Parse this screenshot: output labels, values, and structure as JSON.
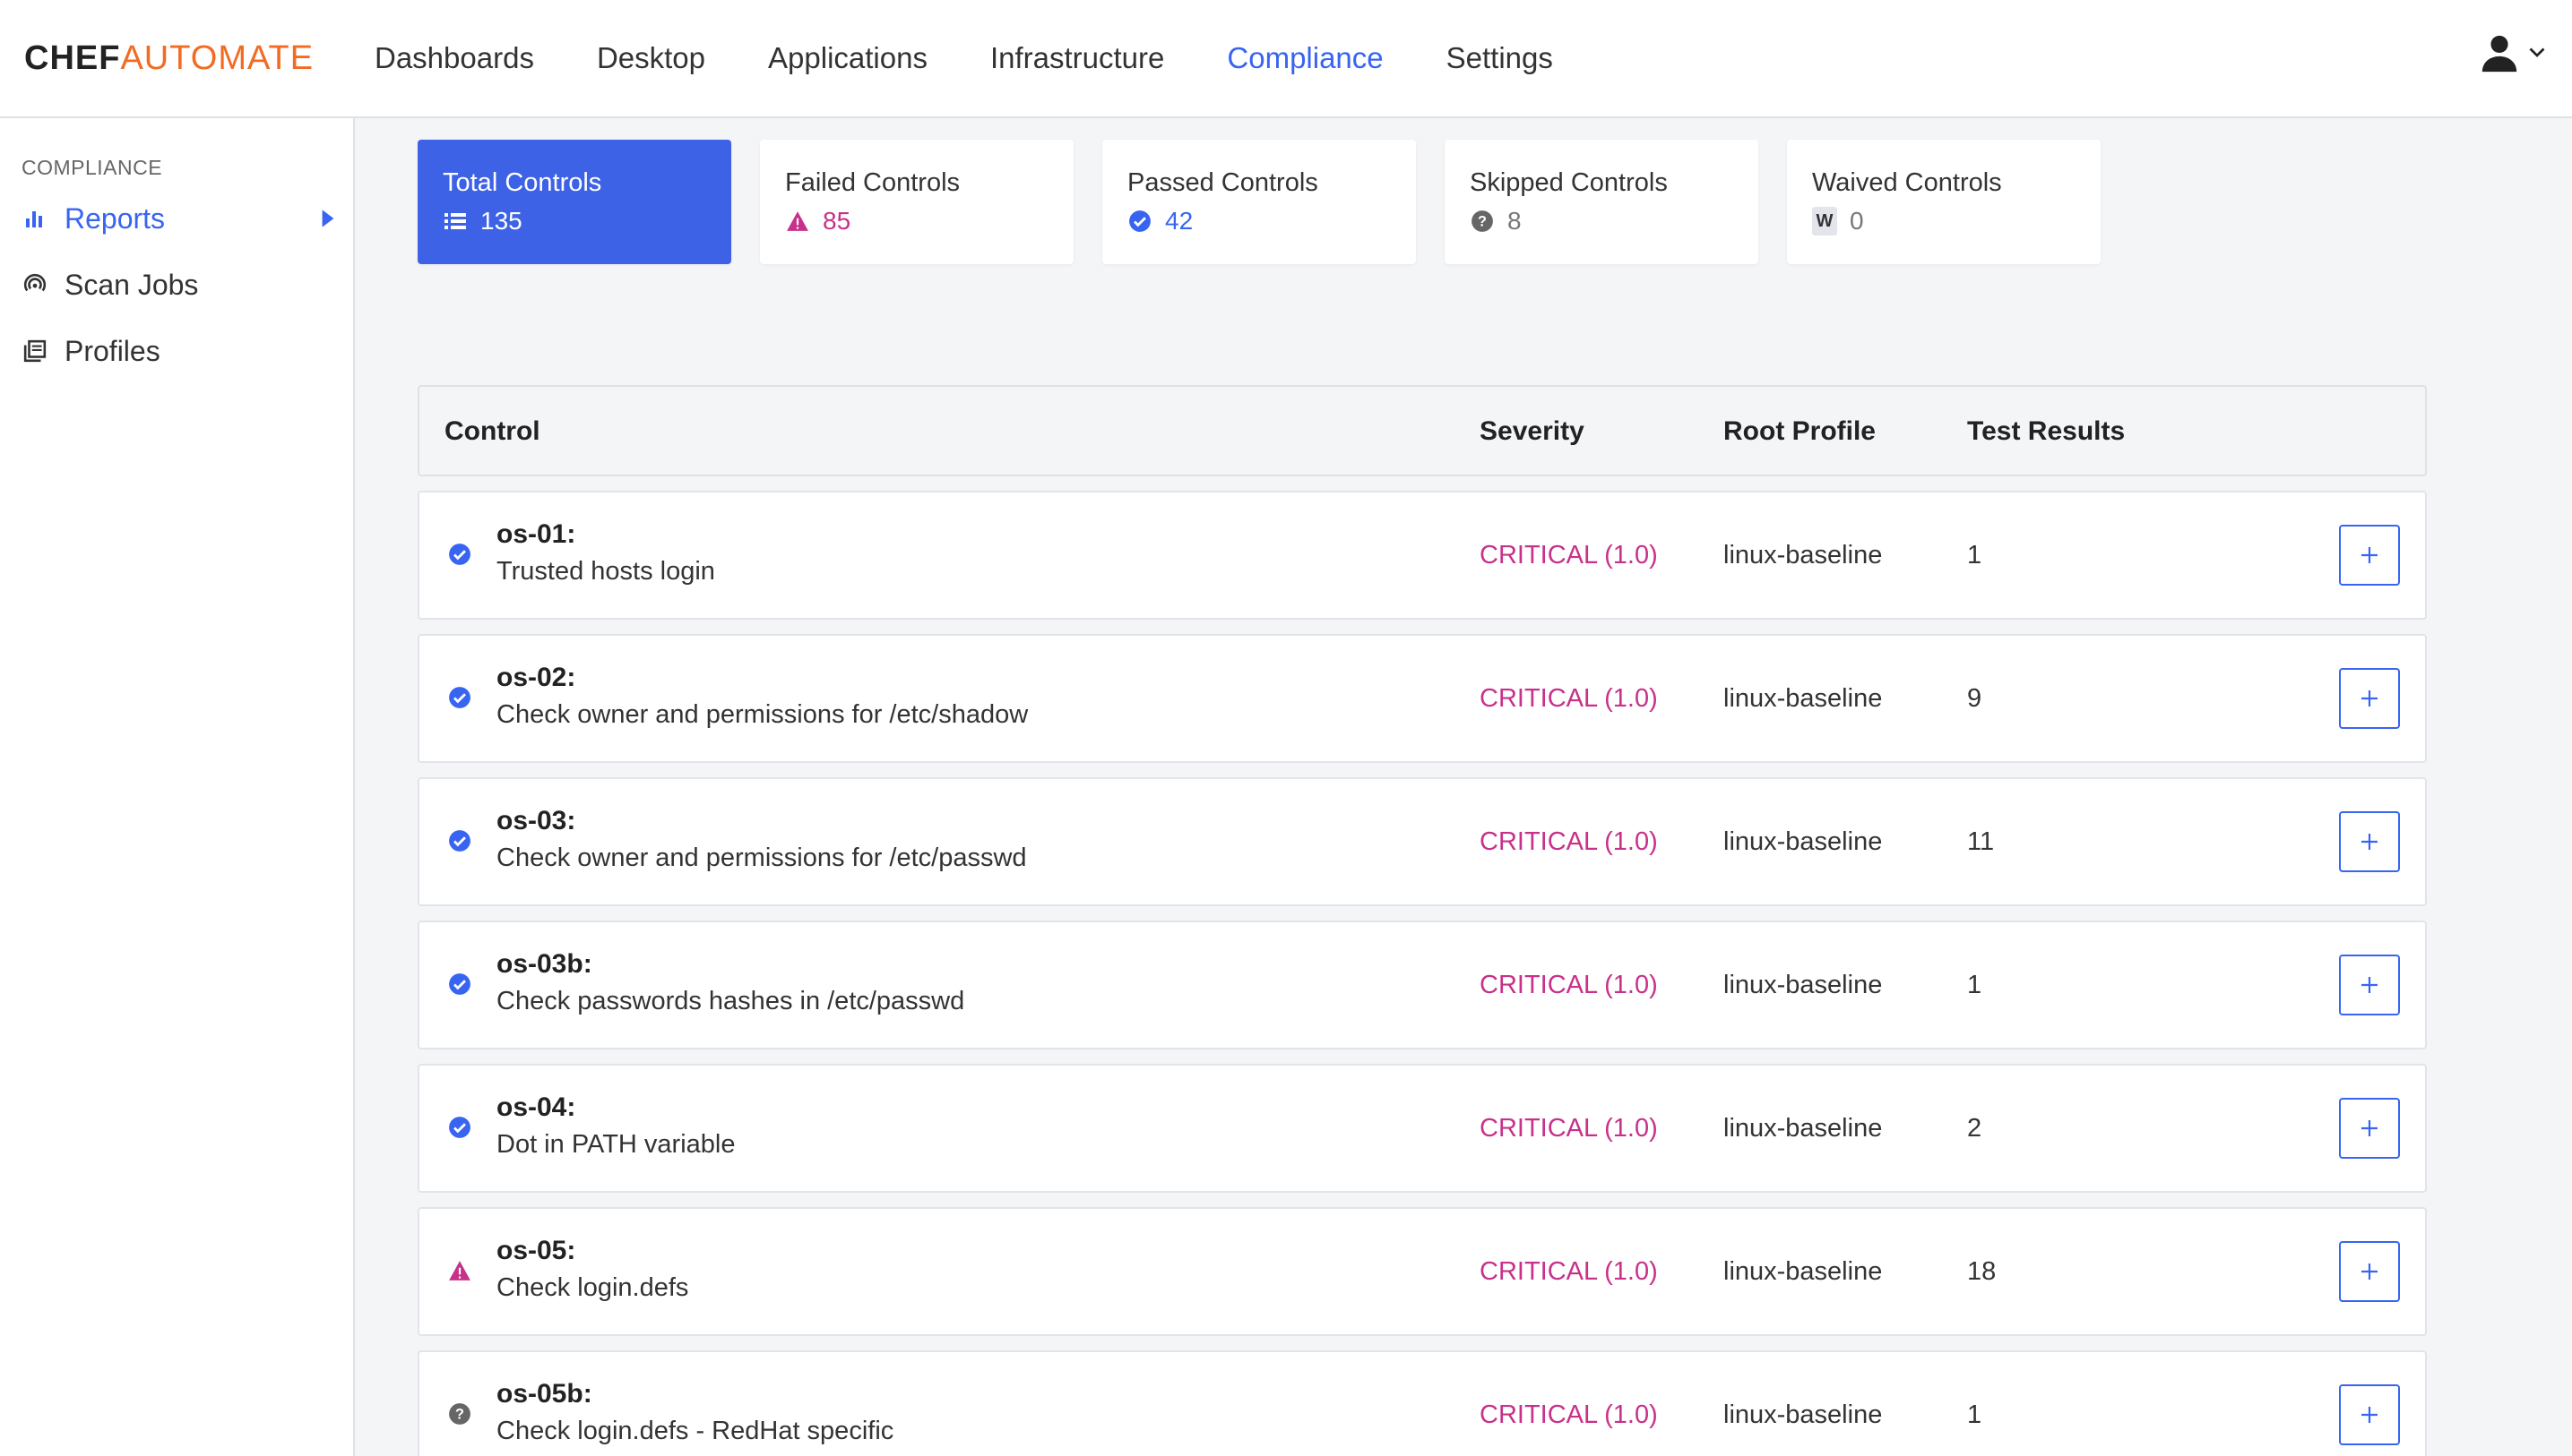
{
  "header": {
    "logo_chef": "CHEF",
    "logo_automate": "AUTOMATE",
    "nav": [
      "Dashboards",
      "Desktop",
      "Applications",
      "Infrastructure",
      "Compliance",
      "Settings"
    ],
    "active_nav": "Compliance"
  },
  "sidebar": {
    "section": "COMPLIANCE",
    "items": [
      {
        "label": "Reports",
        "icon": "bar-chart-icon"
      },
      {
        "label": "Scan Jobs",
        "icon": "radar-icon"
      },
      {
        "label": "Profiles",
        "icon": "library-icon"
      }
    ]
  },
  "stats": [
    {
      "title": "Total Controls",
      "value": "135",
      "icon": "list-icon"
    },
    {
      "title": "Failed Controls",
      "value": "85",
      "icon": "warning-icon"
    },
    {
      "title": "Passed Controls",
      "value": "42",
      "icon": "check-circle-icon"
    },
    {
      "title": "Skipped Controls",
      "value": "8",
      "icon": "question-circle-icon"
    },
    {
      "title": "Waived Controls",
      "value": "0",
      "icon": "waived-badge-icon",
      "badge": "W"
    }
  ],
  "table": {
    "headers": [
      "Control",
      "Severity",
      "Root Profile",
      "Test Results"
    ],
    "rows": [
      {
        "id": "os-01:",
        "title": "Trusted hosts login",
        "severity": "CRITICAL (1.0)",
        "profile": "linux-baseline",
        "results": "1",
        "status": "passed"
      },
      {
        "id": "os-02:",
        "title": "Check owner and permissions for /etc/shadow",
        "severity": "CRITICAL (1.0)",
        "profile": "linux-baseline",
        "results": "9",
        "status": "passed"
      },
      {
        "id": "os-03:",
        "title": "Check owner and permissions for /etc/passwd",
        "severity": "CRITICAL (1.0)",
        "profile": "linux-baseline",
        "results": "11",
        "status": "passed"
      },
      {
        "id": "os-03b:",
        "title": "Check passwords hashes in /etc/passwd",
        "severity": "CRITICAL (1.0)",
        "profile": "linux-baseline",
        "results": "1",
        "status": "passed"
      },
      {
        "id": "os-04:",
        "title": "Dot in PATH variable",
        "severity": "CRITICAL (1.0)",
        "profile": "linux-baseline",
        "results": "2",
        "status": "passed"
      },
      {
        "id": "os-05:",
        "title": "Check login.defs",
        "severity": "CRITICAL (1.0)",
        "profile": "linux-baseline",
        "results": "18",
        "status": "failed"
      },
      {
        "id": "os-05b:",
        "title": "Check login.defs - RedHat specific",
        "severity": "CRITICAL (1.0)",
        "profile": "linux-baseline",
        "results": "1",
        "status": "skipped"
      }
    ]
  },
  "colors": {
    "accent": "#3864f2",
    "active_card": "#3d62e6",
    "critical": "#c8318a",
    "logo_orange": "#f26b21"
  }
}
